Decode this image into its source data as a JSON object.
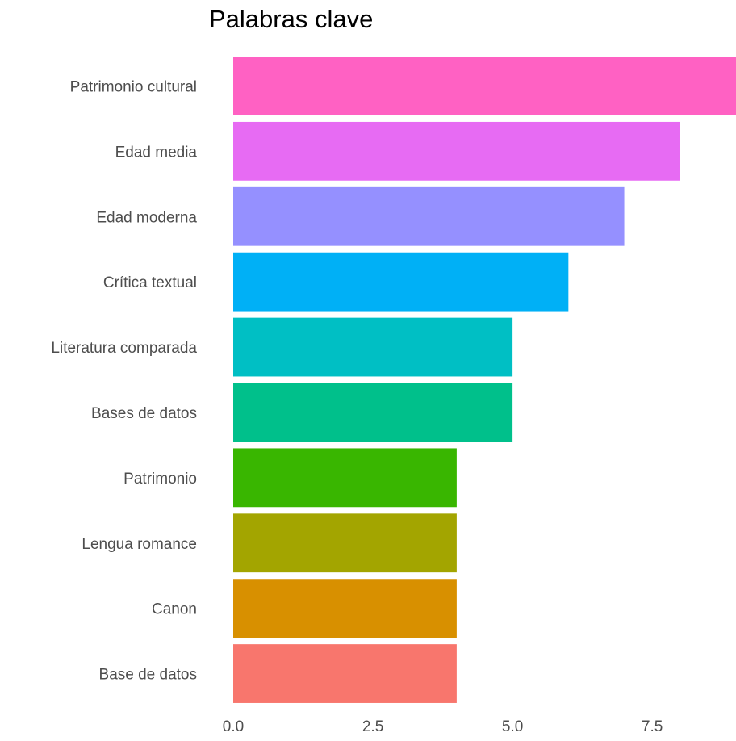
{
  "chart_data": {
    "type": "bar",
    "orientation": "horizontal",
    "title": "Palabras clave",
    "xlabel": "",
    "ylabel": "",
    "categories": [
      "Patrimonio cultural",
      "Edad media",
      "Edad moderna",
      "Crítica textual",
      "Literatura comparada",
      "Bases de datos",
      "Patrimonio",
      "Lengua romance",
      "Canon",
      "Base de datos"
    ],
    "values": [
      9,
      8,
      7,
      6,
      5,
      5,
      4,
      4,
      4,
      4
    ],
    "colors": [
      "#FF61C3",
      "#E76BF3",
      "#9590FF",
      "#00B0F6",
      "#00BFC4",
      "#00C08B",
      "#39B600",
      "#A3A500",
      "#D89000",
      "#F8766D"
    ],
    "xticks": [
      0,
      2.5,
      5,
      7.5
    ],
    "xtick_labels": [
      "0.0",
      "2.5",
      "5.0",
      "7.5"
    ],
    "xlim": [
      0,
      9
    ],
    "grid": false,
    "legend": "none"
  }
}
